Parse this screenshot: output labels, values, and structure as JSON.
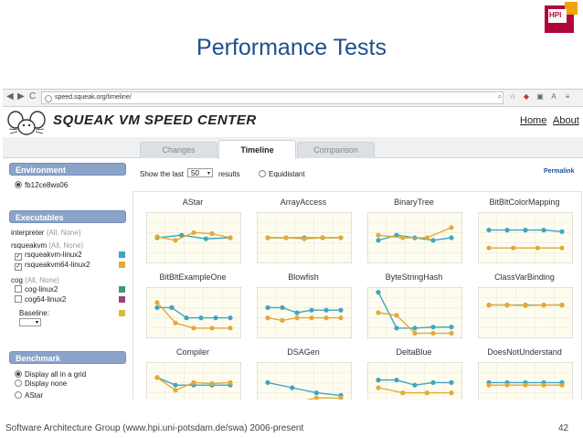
{
  "slide": {
    "title": "Performance Tests",
    "footer": "Software Architecture Group (www.hpi.uni-potsdam.de/swa) 2006-present",
    "page_number": "42",
    "logo_text": "HPI"
  },
  "browser": {
    "url": "speed.squeak.org/timeline/",
    "nav_back": "◀",
    "nav_forward": "▶",
    "nav_reload": "C"
  },
  "site": {
    "title": "SQUEAK VM SPEED CENTER",
    "links": {
      "home": "Home",
      "about": "About"
    },
    "tabs": [
      {
        "label": "Changes"
      },
      {
        "label": "Timeline"
      },
      {
        "label": "Comparison"
      }
    ],
    "active_tab": "Timeline"
  },
  "sidebar": {
    "environment": {
      "heading": "Environment",
      "option": "fb12ce8ws06"
    },
    "executables": {
      "heading": "Executables",
      "interpreter": {
        "name": "interpreter",
        "links": "(All, None)"
      },
      "rsqueakvm": {
        "name": "rsqueakvm",
        "links": "(All, None)",
        "items": [
          {
            "label": "rsqueakvm-linux2",
            "checked": true,
            "color": "#3ea6c0"
          },
          {
            "label": "rsqueakvm64-linux2",
            "checked": true,
            "color": "#e3a93a"
          }
        ]
      },
      "cog": {
        "name": "cog",
        "links": "(All, None)",
        "items": [
          {
            "label": "cog-linux2",
            "checked": false,
            "color": "#3f9a74"
          },
          {
            "label": "cog64-linux2",
            "checked": false,
            "color": "#9d3f84"
          }
        ]
      },
      "baseline": {
        "label": "Baseline:",
        "color": "#d9b942"
      }
    },
    "benchmark": {
      "heading": "Benchmark",
      "options": [
        {
          "label": "Display all in a grid",
          "selected": true
        },
        {
          "label": "Display none",
          "selected": false
        },
        {
          "label": "AStar",
          "selected": false
        }
      ]
    }
  },
  "controls": {
    "show_last_label": "Show the last",
    "show_last_value": "50",
    "results_label": "results",
    "equidistant_label": "Equidistant",
    "permalink": "Permalink"
  },
  "colors": {
    "series_a": "#3ea6c0",
    "series_b": "#e3a93a"
  },
  "chart_data": [
    {
      "type": "line",
      "title": "AStar",
      "series": [
        {
          "values": [
            0.5,
            0.45,
            0.52,
            0.5
          ]
        },
        {
          "values": [
            0.48,
            0.55,
            0.4,
            0.42,
            0.5
          ]
        }
      ]
    },
    {
      "type": "line",
      "title": "ArrayAccess",
      "series": [
        {
          "values": [
            0.5,
            0.5,
            0.5,
            0.5,
            0.5
          ]
        },
        {
          "values": [
            0.5,
            0.5,
            0.52,
            0.5,
            0.5
          ]
        }
      ]
    },
    {
      "type": "line",
      "title": "BinaryTree",
      "series": [
        {
          "values": [
            0.55,
            0.45,
            0.5,
            0.55,
            0.5
          ]
        },
        {
          "values": [
            0.45,
            0.5,
            0.5,
            0.3
          ]
        }
      ]
    },
    {
      "type": "line",
      "title": "BitBltColorMapping",
      "series": [
        {
          "values": [
            0.35,
            0.35,
            0.35,
            0.35,
            0.38
          ]
        },
        {
          "values": [
            0.7,
            0.7,
            0.7,
            0.7
          ]
        }
      ]
    },
    {
      "type": "line",
      "title": "BitBltExampleOne",
      "series": [
        {
          "values": [
            0.4,
            0.4,
            0.6,
            0.6,
            0.6,
            0.6
          ]
        },
        {
          "values": [
            0.3,
            0.7,
            0.8,
            0.8,
            0.8
          ]
        }
      ]
    },
    {
      "type": "line",
      "title": "Blowfish",
      "series": [
        {
          "values": [
            0.4,
            0.4,
            0.5,
            0.45,
            0.45,
            0.45
          ]
        },
        {
          "values": [
            0.6,
            0.65,
            0.6,
            0.6,
            0.6,
            0.6
          ]
        }
      ]
    },
    {
      "type": "line",
      "title": "ByteStringHash",
      "series": [
        {
          "values": [
            0.1,
            0.8,
            0.8,
            0.78,
            0.78
          ]
        },
        {
          "values": [
            0.5,
            0.55,
            0.9,
            0.9,
            0.9
          ]
        }
      ]
    },
    {
      "type": "line",
      "title": "ClassVarBinding",
      "series": [
        {
          "values": [
            0.35,
            0.35,
            0.35,
            0.35,
            0.35
          ]
        },
        {
          "values": [
            0.35,
            0.35,
            0.36,
            0.35,
            0.35
          ]
        }
      ]
    },
    {
      "type": "line",
      "title": "Compiler",
      "series": [
        {
          "values": [
            0.3,
            0.45,
            0.45,
            0.45,
            0.45
          ]
        },
        {
          "values": [
            0.3,
            0.55,
            0.4,
            0.42,
            0.4
          ]
        }
      ]
    },
    {
      "type": "line",
      "title": "DSAGen",
      "series": [
        {
          "values": [
            0.4,
            0.5,
            0.6,
            0.65
          ]
        },
        {
          "values": [
            0.8,
            0.8,
            0.7,
            0.7
          ]
        }
      ]
    },
    {
      "type": "line",
      "title": "DeltaBlue",
      "series": [
        {
          "values": [
            0.35,
            0.35,
            0.45,
            0.4,
            0.4
          ]
        },
        {
          "values": [
            0.5,
            0.6,
            0.6,
            0.6
          ]
        }
      ]
    },
    {
      "type": "line",
      "title": "DoesNotUnderstand",
      "series": [
        {
          "values": [
            0.4,
            0.4,
            0.4,
            0.4,
            0.4
          ]
        },
        {
          "values": [
            0.45,
            0.45,
            0.45,
            0.45,
            0.45
          ]
        }
      ]
    }
  ]
}
